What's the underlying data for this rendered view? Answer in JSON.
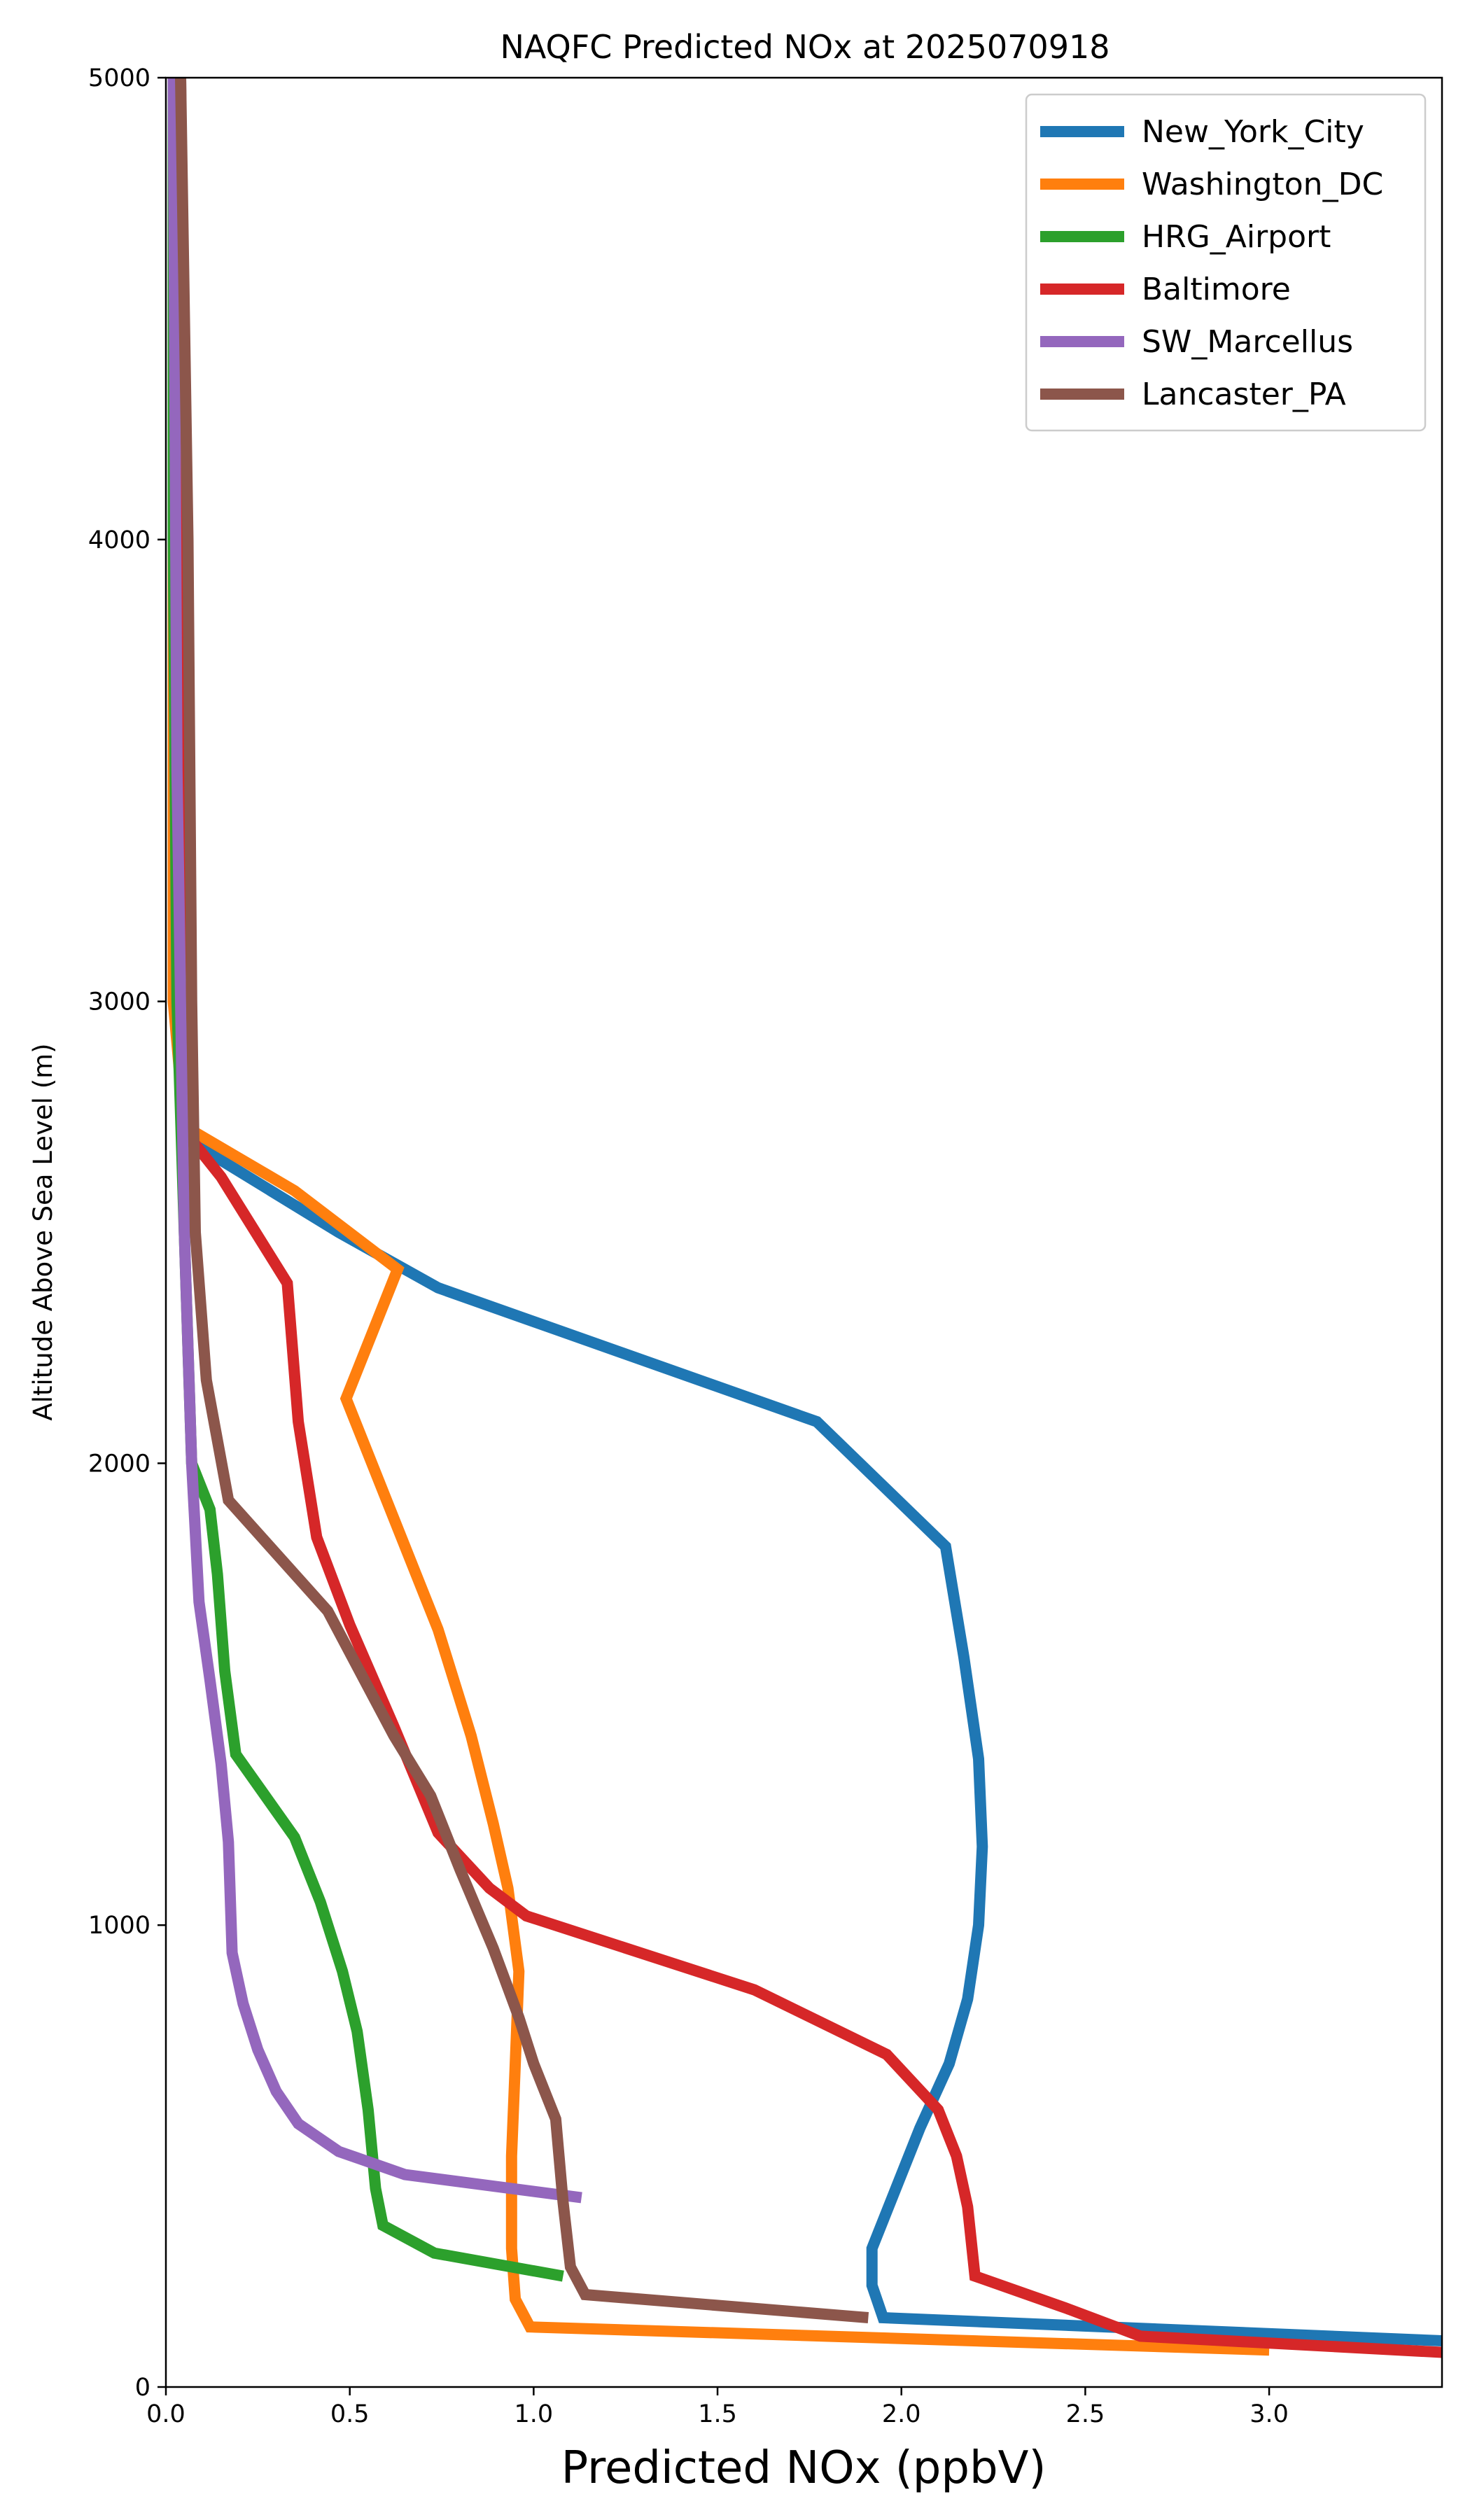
{
  "chart_data": {
    "type": "line",
    "title": "NAQFC Predicted NOx at 2025070918",
    "xlabel": "Predicted NOx (ppbV)",
    "ylabel": "Altitude Above Sea Level (m)",
    "xlim": [
      0,
      3.47
    ],
    "ylim": [
      0,
      5000
    ],
    "xticks": [
      0.0,
      0.5,
      1.0,
      1.5,
      2.0,
      2.5,
      3.0
    ],
    "xtick_labels": [
      "0.0",
      "0.5",
      "1.0",
      "1.5",
      "2.0",
      "2.5",
      "3.0"
    ],
    "yticks": [
      0,
      1000,
      2000,
      3000,
      4000,
      5000
    ],
    "ytick_labels": [
      "0",
      "1000",
      "2000",
      "3000",
      "4000",
      "5000"
    ],
    "grid": false,
    "legend_position": "upper right",
    "series": [
      {
        "name": "New_York_City",
        "color": "#1f77b4",
        "points": [
          [
            3.47,
            100
          ],
          [
            1.95,
            150
          ],
          [
            1.92,
            220
          ],
          [
            1.92,
            300
          ],
          [
            1.98,
            420
          ],
          [
            2.05,
            560
          ],
          [
            2.13,
            700
          ],
          [
            2.18,
            840
          ],
          [
            2.21,
            1000
          ],
          [
            2.22,
            1170
          ],
          [
            2.21,
            1360
          ],
          [
            2.17,
            1580
          ],
          [
            2.12,
            1820
          ],
          [
            1.77,
            2090
          ],
          [
            0.74,
            2380
          ],
          [
            0.47,
            2500
          ],
          [
            0.06,
            2700
          ],
          [
            0.05,
            3500
          ],
          [
            0.04,
            5000
          ]
        ]
      },
      {
        "name": "Washington_DC",
        "color": "#ff7f0e",
        "points": [
          [
            3.0,
            80
          ],
          [
            0.99,
            130
          ],
          [
            0.95,
            190
          ],
          [
            0.94,
            300
          ],
          [
            0.94,
            500
          ],
          [
            0.95,
            700
          ],
          [
            0.96,
            900
          ],
          [
            0.93,
            1080
          ],
          [
            0.89,
            1220
          ],
          [
            0.83,
            1410
          ],
          [
            0.74,
            1640
          ],
          [
            0.49,
            2140
          ],
          [
            0.63,
            2420
          ],
          [
            0.35,
            2590
          ],
          [
            0.05,
            2730
          ],
          [
            0.02,
            3000
          ],
          [
            0.02,
            5000
          ]
        ]
      },
      {
        "name": "HRG_Airport",
        "color": "#2ca02c",
        "points": [
          [
            1.08,
            240
          ],
          [
            0.73,
            290
          ],
          [
            0.59,
            350
          ],
          [
            0.57,
            430
          ],
          [
            0.55,
            600
          ],
          [
            0.52,
            770
          ],
          [
            0.48,
            900
          ],
          [
            0.42,
            1050
          ],
          [
            0.35,
            1190
          ],
          [
            0.19,
            1370
          ],
          [
            0.16,
            1550
          ],
          [
            0.14,
            1760
          ],
          [
            0.12,
            1900
          ],
          [
            0.07,
            2000
          ],
          [
            0.06,
            2250
          ],
          [
            0.05,
            2500
          ],
          [
            0.03,
            3000
          ],
          [
            0.02,
            4000
          ],
          [
            0.02,
            5000
          ]
        ]
      },
      {
        "name": "Baltimore",
        "color": "#d62728",
        "points": [
          [
            3.47,
            75
          ],
          [
            2.65,
            110
          ],
          [
            2.45,
            170
          ],
          [
            2.2,
            240
          ],
          [
            2.18,
            390
          ],
          [
            2.15,
            500
          ],
          [
            2.1,
            600
          ],
          [
            1.96,
            720
          ],
          [
            1.6,
            860
          ],
          [
            0.98,
            1020
          ],
          [
            0.88,
            1080
          ],
          [
            0.74,
            1200
          ],
          [
            0.62,
            1430
          ],
          [
            0.5,
            1650
          ],
          [
            0.41,
            1840
          ],
          [
            0.36,
            2090
          ],
          [
            0.33,
            2390
          ],
          [
            0.15,
            2620
          ],
          [
            0.07,
            2700
          ],
          [
            0.06,
            2920
          ],
          [
            0.05,
            3500
          ],
          [
            0.04,
            5000
          ]
        ]
      },
      {
        "name": "SW_Marcellus",
        "color": "#9467bd",
        "points": [
          [
            1.13,
            410
          ],
          [
            0.65,
            460
          ],
          [
            0.47,
            510
          ],
          [
            0.36,
            570
          ],
          [
            0.3,
            640
          ],
          [
            0.25,
            730
          ],
          [
            0.21,
            830
          ],
          [
            0.18,
            940
          ],
          [
            0.17,
            1180
          ],
          [
            0.15,
            1350
          ],
          [
            0.12,
            1530
          ],
          [
            0.09,
            1700
          ],
          [
            0.07,
            2000
          ],
          [
            0.05,
            2500
          ],
          [
            0.04,
            3000
          ],
          [
            0.03,
            3500
          ],
          [
            0.02,
            5000
          ]
        ]
      },
      {
        "name": "Lancaster_PA",
        "color": "#8c564b",
        "points": [
          [
            1.91,
            150
          ],
          [
            1.14,
            200
          ],
          [
            1.1,
            260
          ],
          [
            1.08,
            400
          ],
          [
            1.06,
            580
          ],
          [
            1.0,
            700
          ],
          [
            0.96,
            800
          ],
          [
            0.89,
            950
          ],
          [
            0.8,
            1120
          ],
          [
            0.72,
            1280
          ],
          [
            0.62,
            1410
          ],
          [
            0.44,
            1680
          ],
          [
            0.17,
            1920
          ],
          [
            0.11,
            2180
          ],
          [
            0.08,
            2500
          ],
          [
            0.07,
            3000
          ],
          [
            0.06,
            4000
          ],
          [
            0.04,
            5000
          ]
        ]
      }
    ]
  }
}
